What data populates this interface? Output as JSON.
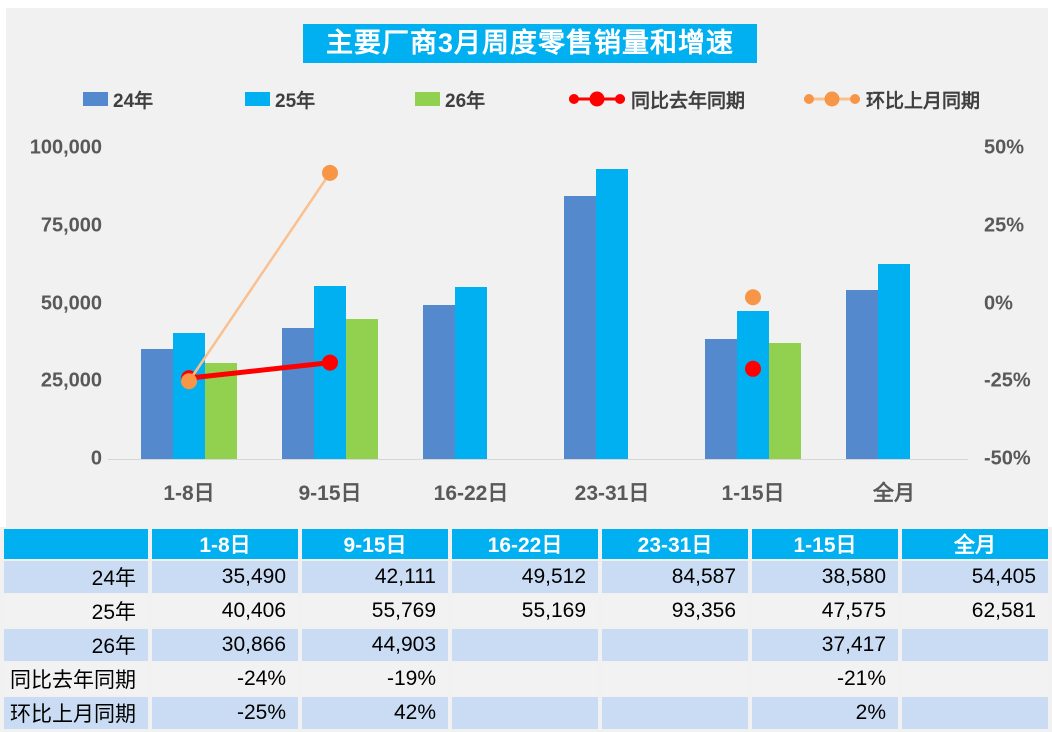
{
  "title": "主要厂商3月周度零售销量和增速",
  "colors": {
    "title_bg": "#00B0F0",
    "bar_24": "#5589CD",
    "bar_25": "#00B0F0",
    "bar_26": "#92D050",
    "yoy_line": "#FF0000",
    "yoy_marker": "#FF0000",
    "mom_line": "#FAC090",
    "mom_marker": "#F79646",
    "table_header_bg": "#00B0F0",
    "table_row_blue": "#C9DCF3",
    "table_row_light": "#F2F2F2",
    "axis_text": "#595959"
  },
  "legend": {
    "items": [
      {
        "label": "24年",
        "swatch": "bar",
        "color": "#5589CD"
      },
      {
        "label": "25年",
        "swatch": "bar",
        "color": "#00B0F0"
      },
      {
        "label": "26年",
        "swatch": "bar",
        "color": "#92D050"
      },
      {
        "label": "同比去年同期",
        "swatch": "line",
        "color": "#FF0000",
        "line_color": "#FF0000"
      },
      {
        "label": "环比上月同期",
        "swatch": "line",
        "color": "#F79646",
        "line_color": "#FAC090"
      }
    ]
  },
  "chart_data": {
    "type": "combo",
    "title": "主要厂商3月周度零售销量和增速",
    "categories": [
      "1-8日",
      "9-15日",
      "16-22日",
      "23-31日",
      "1-15日",
      "全月"
    ],
    "bar_series": [
      {
        "name": "24年",
        "color": "#5589CD",
        "values": [
          35490,
          42111,
          49512,
          84587,
          38580,
          54405
        ]
      },
      {
        "name": "25年",
        "color": "#00B0F0",
        "values": [
          40406,
          55769,
          55169,
          93356,
          47575,
          62581
        ]
      },
      {
        "name": "26年",
        "color": "#92D050",
        "values": [
          30866,
          44903,
          null,
          null,
          37417,
          null
        ]
      }
    ],
    "line_series": [
      {
        "name": "同比去年同期",
        "marker_color": "#FF0000",
        "line_color": "#FF0000",
        "line_width": 5,
        "values_pct": [
          -24,
          -19,
          null,
          null,
          -21,
          null
        ]
      },
      {
        "name": "环比上月同期",
        "marker_color": "#F79646",
        "line_color": "#FAC090",
        "line_width": 2.5,
        "values_pct": [
          -25,
          42,
          null,
          null,
          2,
          null
        ]
      }
    ],
    "left_axis": {
      "min": 0,
      "max": 100000,
      "ticks": [
        {
          "label": "100,000",
          "value": 100000
        },
        {
          "label": "75,000",
          "value": 75000
        },
        {
          "label": "50,000",
          "value": 50000
        },
        {
          "label": "25,000",
          "value": 25000
        },
        {
          "label": "0",
          "value": 0
        }
      ]
    },
    "right_axis": {
      "min": -50,
      "max": 50,
      "ticks": [
        {
          "label": "50%",
          "value": 50
        },
        {
          "label": "25%",
          "value": 25
        },
        {
          "label": "0%",
          "value": 0
        },
        {
          "label": "-25%",
          "value": -25
        },
        {
          "label": "-50%",
          "value": -50
        }
      ]
    },
    "grid": false,
    "legend_position": "top"
  },
  "table": {
    "header": [
      "",
      "1-8日",
      "9-15日",
      "16-22日",
      "23-31日",
      "1-15日",
      "全月"
    ],
    "rows": [
      {
        "label": "24年",
        "cells": [
          "35,490",
          "42,111",
          "49,512",
          "84,587",
          "38,580",
          "54,405"
        ]
      },
      {
        "label": "25年",
        "cells": [
          "40,406",
          "55,769",
          "55,169",
          "93,356",
          "47,575",
          "62,581"
        ]
      },
      {
        "label": "26年",
        "cells": [
          "30,866",
          "44,903",
          "",
          "",
          "37,417",
          ""
        ]
      },
      {
        "label": "同比去年同期",
        "cells": [
          "-24%",
          "-19%",
          "",
          "",
          "-21%",
          ""
        ]
      },
      {
        "label": "环比上月同期",
        "cells": [
          "-25%",
          "42%",
          "",
          "",
          "2%",
          ""
        ]
      }
    ]
  }
}
